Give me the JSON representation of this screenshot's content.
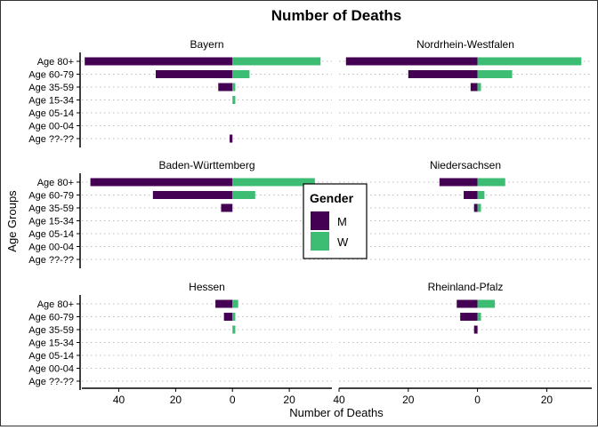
{
  "chart_data": {
    "type": "bar",
    "orientation": "horizontal-diverging",
    "title": "Number of Deaths",
    "xlabel": "Number of Deaths",
    "ylabel": "Age Groups",
    "categories": [
      "Age 80+",
      "Age 60-79",
      "Age 35-59",
      "Age 15-34",
      "Age 05-14",
      "Age 00-04",
      "Age ??-??"
    ],
    "x_ticks": [
      "40",
      "20",
      "0",
      "20"
    ],
    "xlim_left": [
      -53,
      35
    ],
    "xlim_right": [
      -40,
      33
    ],
    "grid": "dotted horizontal",
    "legend": {
      "title": "Gender",
      "position": "center",
      "entries": [
        {
          "label": "M",
          "color": "#440154"
        },
        {
          "label": "W",
          "color": "#3DBC74"
        }
      ]
    },
    "panels": [
      {
        "name": "Bayern",
        "M": [
          52,
          27,
          5,
          0,
          0,
          0,
          1
        ],
        "W": [
          31,
          6,
          1,
          1,
          0,
          0,
          0
        ]
      },
      {
        "name": "Nordrhein-Westfalen",
        "M": [
          38,
          20,
          2,
          0,
          0,
          0,
          0
        ],
        "W": [
          30,
          10,
          1,
          0,
          0,
          0,
          0
        ]
      },
      {
        "name": "Baden-Württemberg",
        "M": [
          50,
          28,
          4,
          0,
          0,
          0,
          0
        ],
        "W": [
          29,
          8,
          0,
          0,
          0,
          0,
          0
        ]
      },
      {
        "name": "Niedersachsen",
        "M": [
          11,
          4,
          1,
          0,
          0,
          0,
          0
        ],
        "W": [
          8,
          2,
          1,
          0,
          0,
          0,
          0
        ]
      },
      {
        "name": "Hessen",
        "M": [
          6,
          3,
          0,
          0,
          0,
          0,
          0
        ],
        "W": [
          2,
          1,
          1,
          0,
          0,
          0,
          0
        ]
      },
      {
        "name": "Rheinland-Pfalz",
        "M": [
          6,
          5,
          1,
          0,
          0,
          0,
          0
        ],
        "W": [
          5,
          1,
          0,
          0,
          0,
          0,
          0
        ]
      }
    ]
  }
}
